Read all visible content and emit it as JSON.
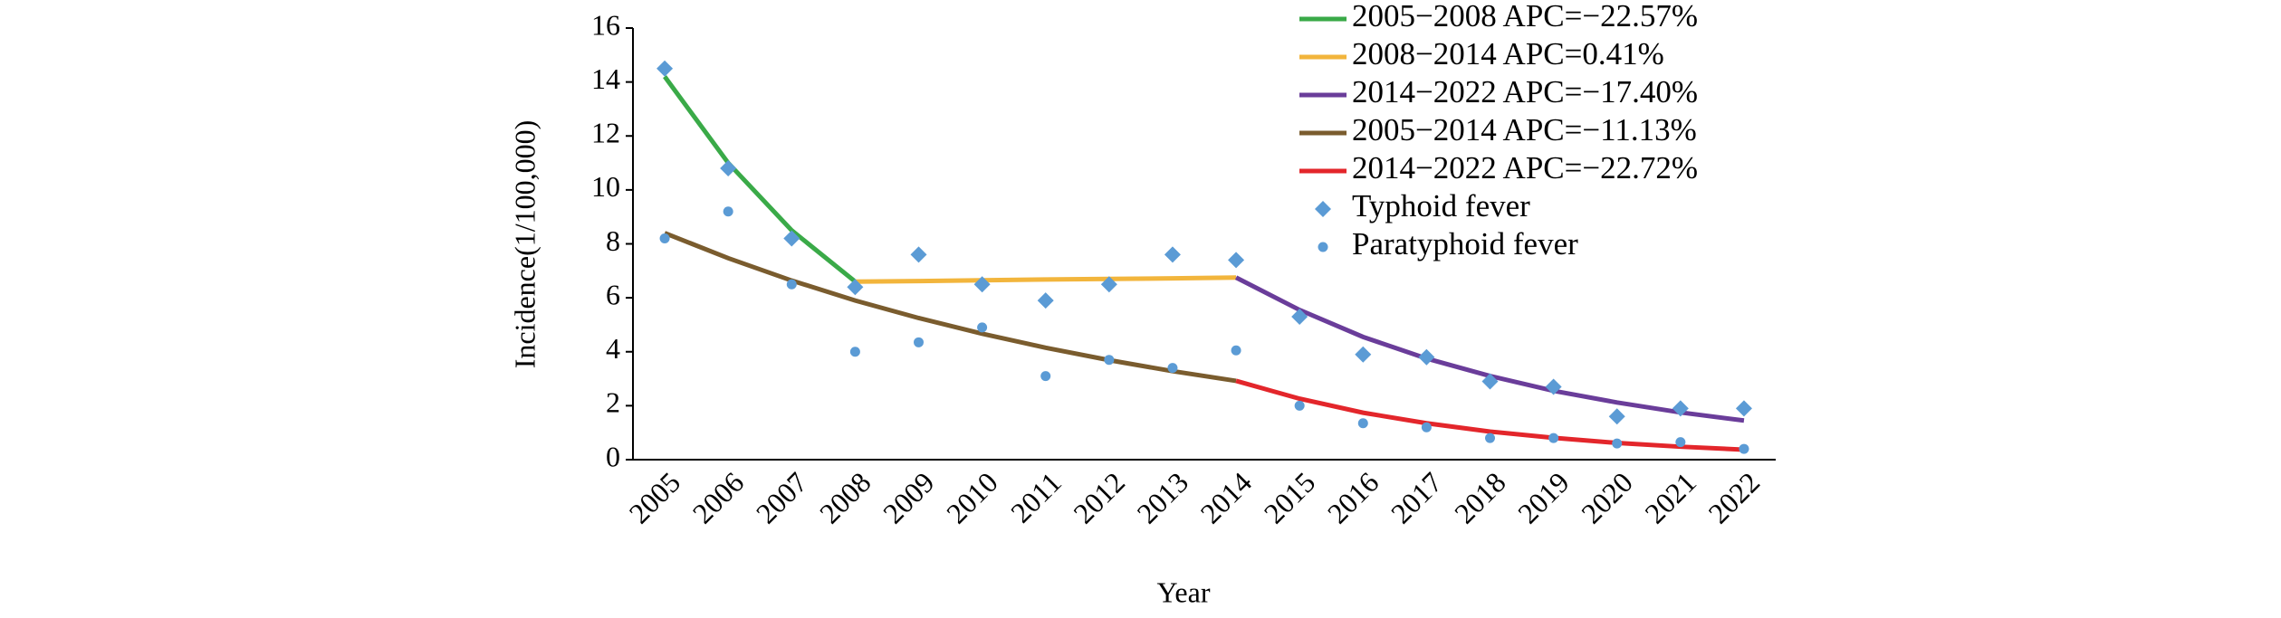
{
  "chart_data": {
    "type": "line",
    "x_label": "Year",
    "y_label": "Incidence(1/100,000)",
    "categories": [
      "2005",
      "2006",
      "2007",
      "2008",
      "2009",
      "2010",
      "2011",
      "2012",
      "2013",
      "2014",
      "2015",
      "2016",
      "2017",
      "2018",
      "2019",
      "2020",
      "2021",
      "2022"
    ],
    "ylim": [
      0,
      16
    ],
    "yticks": [
      0,
      2,
      4,
      6,
      8,
      10,
      12,
      14,
      16
    ],
    "grid": false,
    "legend": "top-right",
    "series": [
      {
        "name": "2005−2008 APC=−22.57%",
        "color": "#3aaa48",
        "marker": "none",
        "values": [
          14.2,
          11.0,
          8.5,
          6.6,
          null,
          null,
          null,
          null,
          null,
          null,
          null,
          null,
          null,
          null,
          null,
          null,
          null,
          null
        ]
      },
      {
        "name": "2008−2014 APC=0.41%",
        "color": "#f2b53c",
        "marker": "none",
        "values": [
          null,
          null,
          null,
          6.6,
          6.62,
          6.65,
          6.68,
          6.7,
          6.72,
          6.75,
          null,
          null,
          null,
          null,
          null,
          null,
          null,
          null
        ]
      },
      {
        "name": "2014−2022 APC=−17.40%",
        "color": "#6a3d9a",
        "marker": "none",
        "values": [
          null,
          null,
          null,
          null,
          null,
          null,
          null,
          null,
          null,
          6.75,
          5.55,
          4.55,
          3.75,
          3.1,
          2.55,
          2.12,
          1.75,
          1.45
        ]
      },
      {
        "name": "2005−2014 APC=−11.13%",
        "color": "#7a5c2e",
        "marker": "none",
        "values": [
          8.4,
          7.47,
          6.64,
          5.9,
          5.25,
          4.67,
          4.15,
          3.69,
          3.28,
          2.92,
          null,
          null,
          null,
          null,
          null,
          null,
          null,
          null
        ]
      },
      {
        "name": "2014−2022 APC=−22.72%",
        "color": "#e3262b",
        "marker": "none",
        "values": [
          null,
          null,
          null,
          null,
          null,
          null,
          null,
          null,
          null,
          2.92,
          2.26,
          1.74,
          1.35,
          1.04,
          0.81,
          0.62,
          0.48,
          0.37
        ]
      },
      {
        "name": "Typhoid fever",
        "color": "#5b9bd5",
        "marker": "diamond",
        "values": [
          14.5,
          10.8,
          8.2,
          6.4,
          7.6,
          6.5,
          5.9,
          6.5,
          7.6,
          7.4,
          5.3,
          3.9,
          3.8,
          2.9,
          2.7,
          1.6,
          1.9,
          1.9
        ]
      },
      {
        "name": "Paratyphoid fever",
        "color": "#5b9bd5",
        "marker": "dot",
        "values": [
          8.2,
          9.2,
          6.5,
          4.0,
          4.35,
          4.9,
          3.1,
          3.7,
          3.4,
          4.05,
          2.0,
          1.35,
          1.2,
          0.8,
          0.8,
          0.6,
          0.65,
          0.4
        ]
      }
    ]
  }
}
